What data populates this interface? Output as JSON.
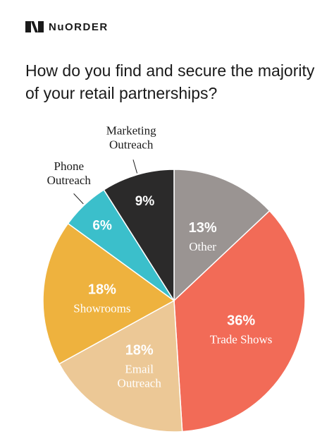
{
  "brand": {
    "name": "NuORDER",
    "logo_icon": "nuorder-logo-icon"
  },
  "title": "How do you find and secure the majority of your retail partnerships?",
  "chart_data": {
    "type": "pie",
    "title": "How do you find and secure the majority of your retail partnerships?",
    "slices": [
      {
        "label": "Other",
        "value": 13,
        "value_label": "13%",
        "color": "#9a9492",
        "label_color": "#ffffff",
        "label_lines": [
          "Other"
        ]
      },
      {
        "label": "Trade Shows",
        "value": 36,
        "value_label": "36%",
        "color": "#f26b57",
        "label_color": "#ffffff",
        "label_lines": [
          "Trade Shows"
        ]
      },
      {
        "label": "Email Outreach",
        "value": 18,
        "value_label": "18%",
        "color": "#ecc896",
        "label_color": "#ffffff",
        "label_lines": [
          "Email",
          "Outreach"
        ]
      },
      {
        "label": "Showrooms",
        "value": 18,
        "value_label": "18%",
        "color": "#eeb23e",
        "label_color": "#ffffff",
        "label_lines": [
          "Showrooms"
        ]
      },
      {
        "label": "Phone Outreach",
        "value": 6,
        "value_label": "6%",
        "color": "#3bbfcb",
        "label_color": "#1a1a1a",
        "label_lines": [
          "Phone",
          "Outreach"
        ],
        "label_outside": true
      },
      {
        "label": "Marketing Outreach",
        "value": 9,
        "value_label": "9%",
        "color": "#2b2a2a",
        "label_color": "#1a1a1a",
        "label_lines": [
          "Marketing",
          "Outreach"
        ],
        "label_outside": true
      }
    ],
    "start": "12 o'clock",
    "direction": "clockwise",
    "legend": "none"
  }
}
